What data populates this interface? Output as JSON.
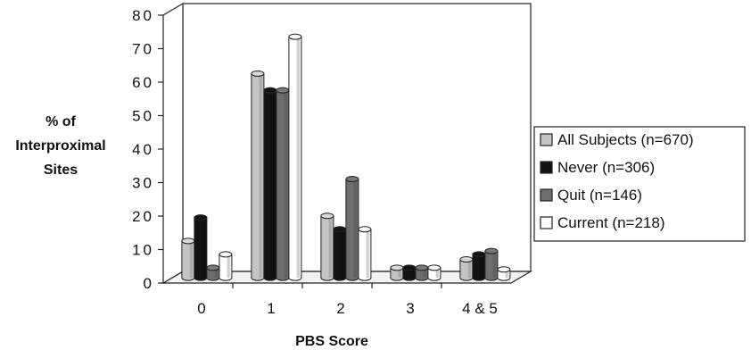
{
  "chart_data": {
    "type": "bar",
    "title": "",
    "xlabel": "PBS Score",
    "ylabel": [
      "% of",
      "Interproximal",
      "Sites"
    ],
    "ylim": [
      0,
      80
    ],
    "yticks": [
      "0",
      "10",
      "20",
      "30",
      "40",
      "50",
      "60",
      "70",
      "80"
    ],
    "categories": [
      "0",
      "1",
      "2",
      "3",
      "4 & 5"
    ],
    "series": [
      {
        "name": "All Subjects  (n=670)",
        "color": "#c4c4c4",
        "values": [
          11,
          61,
          18.5,
          3,
          5.5
        ]
      },
      {
        "name": "Never  (n=306)",
        "color": "#121212",
        "values": [
          18,
          56,
          14.5,
          3,
          7
        ]
      },
      {
        "name": "Quit  (n=146)",
        "color": "#6e6e6e",
        "values": [
          3,
          56,
          29.5,
          3,
          8
        ]
      },
      {
        "name": "Current  (n=218)",
        "color": "#ffffff",
        "values": [
          7,
          72,
          14.5,
          3,
          2.5
        ]
      }
    ],
    "grid": false,
    "legend_position": "right"
  }
}
